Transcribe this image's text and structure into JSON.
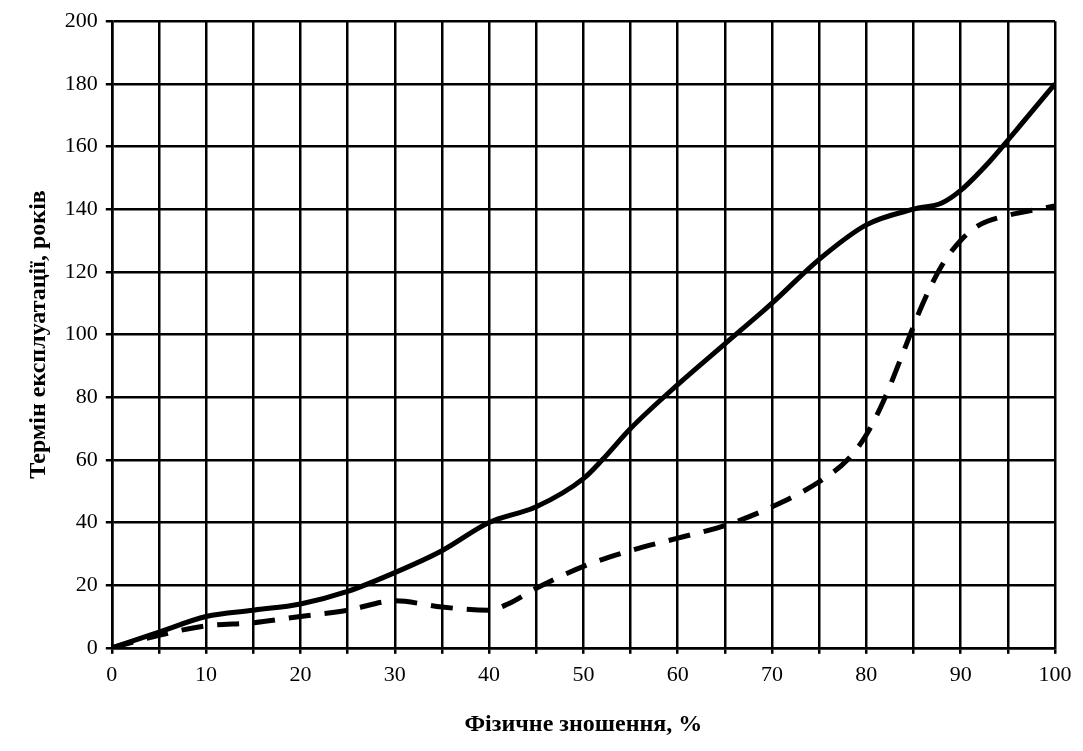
{
  "chart_data": {
    "type": "line",
    "xlabel": "Фізичне зношення, %",
    "ylabel": "Термін експлуатації, років",
    "xlim": [
      0,
      100
    ],
    "ylim": [
      0,
      200
    ],
    "xticks": [
      0,
      {
        "value": 5,
        "label": null
      },
      10,
      {
        "value": 15,
        "label": null
      },
      20,
      {
        "value": 25,
        "label": null
      },
      30,
      {
        "value": 35,
        "label": null
      },
      40,
      {
        "value": 45,
        "label": null
      },
      50,
      {
        "value": 55,
        "label": null
      },
      60,
      {
        "value": 65,
        "label": null
      },
      70,
      {
        "value": 75,
        "label": null
      },
      80,
      {
        "value": 85,
        "label": null
      },
      90,
      {
        "value": 95,
        "label": null
      },
      100
    ],
    "yticks": [
      0,
      20,
      40,
      60,
      80,
      100,
      120,
      140,
      160,
      180,
      200
    ],
    "grid": true,
    "legend": false,
    "marker": "none",
    "series": [
      {
        "color": "#000000",
        "line_style": "solid",
        "x": [
          0,
          5,
          10,
          15,
          20,
          25,
          30,
          35,
          40,
          45,
          50,
          52,
          55,
          60,
          65,
          70,
          75,
          80,
          85,
          88,
          90,
          93,
          95,
          100
        ],
        "values": [
          0,
          5,
          10,
          12,
          14,
          18,
          24,
          31,
          40,
          45,
          54,
          60,
          70,
          84,
          97,
          110,
          124,
          135,
          140,
          142,
          146,
          155,
          162,
          180
        ]
      },
      {
        "color": "#000000",
        "line_style": "dashed",
        "x": [
          0,
          5,
          10,
          15,
          20,
          25,
          30,
          35,
          40,
          42,
          45,
          50,
          55,
          60,
          65,
          70,
          75,
          78,
          80,
          82,
          84,
          86,
          88,
          90,
          92,
          95,
          100
        ],
        "values": [
          0,
          4,
          7,
          8,
          10,
          12,
          15,
          13,
          12,
          14,
          19,
          26,
          31,
          35,
          39,
          45,
          53,
          60,
          68,
          80,
          95,
          110,
          122,
          130,
          135,
          138,
          141
        ]
      }
    ]
  }
}
